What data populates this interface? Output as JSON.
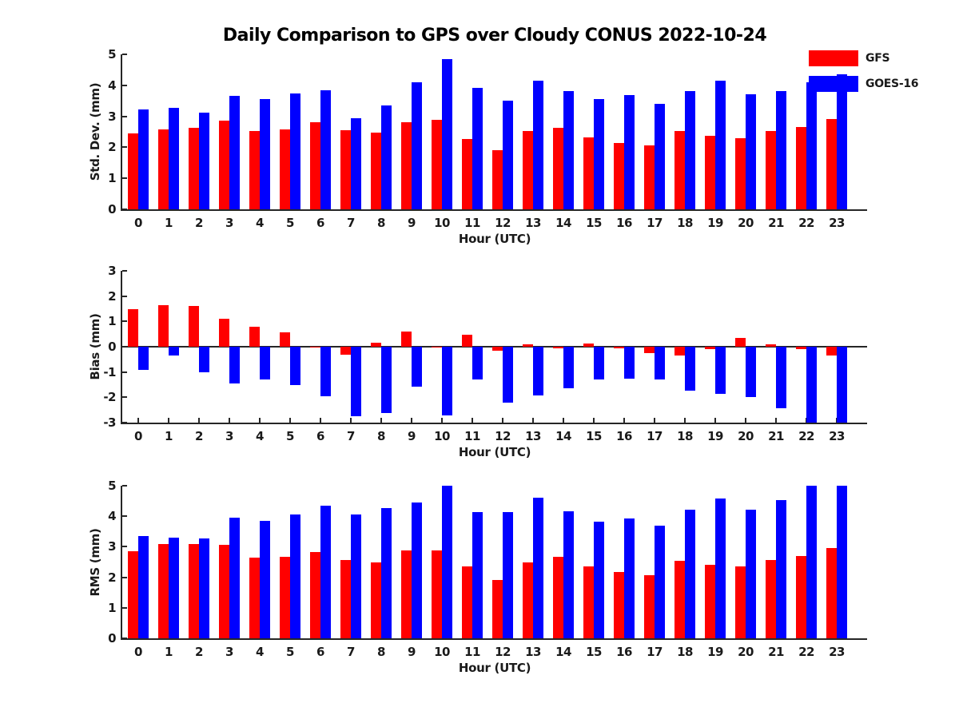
{
  "title": "Daily Comparison to GPS over Cloudy CONUS 2022-10-24",
  "legend": [
    {
      "label": "GFS",
      "color": "#ff0000"
    },
    {
      "label": "GOES-16",
      "color": "#0000ff"
    }
  ],
  "colors": {
    "gfs": "#ff0000",
    "goes16": "#0000ff",
    "axis": "#262626"
  },
  "chart_data": [
    {
      "type": "bar",
      "ylabel": "Std. Dev. (mm)",
      "xlabel": "Hour (UTC)",
      "categories": [
        "0",
        "1",
        "2",
        "3",
        "4",
        "5",
        "6",
        "7",
        "8",
        "9",
        "10",
        "11",
        "12",
        "13",
        "14",
        "15",
        "16",
        "17",
        "18",
        "19",
        "20",
        "21",
        "22",
        "23"
      ],
      "ylim": [
        0,
        5
      ],
      "yticks": [
        0,
        1,
        2,
        3,
        4,
        5
      ],
      "grid": false,
      "legend_position": "top-right-outside",
      "series": [
        {
          "name": "GFS",
          "color": "#ff0000",
          "values": [
            2.45,
            2.57,
            2.62,
            2.85,
            2.52,
            2.58,
            2.82,
            2.55,
            2.47,
            2.82,
            2.88,
            2.28,
            1.9,
            2.52,
            2.64,
            2.32,
            2.15,
            2.05,
            2.52,
            2.36,
            2.3,
            2.53,
            2.65,
            2.9
          ]
        },
        {
          "name": "GOES-16",
          "color": "#0000ff",
          "values": [
            3.22,
            3.28,
            3.13,
            3.66,
            3.56,
            3.73,
            3.84,
            2.93,
            3.36,
            4.1,
            4.85,
            3.92,
            3.5,
            4.16,
            3.81,
            3.55,
            3.68,
            3.41,
            3.81,
            4.16,
            3.72,
            3.81,
            4.1,
            4.35
          ]
        }
      ]
    },
    {
      "type": "bar",
      "ylabel": "Bias (mm)",
      "xlabel": "Hour (UTC)",
      "categories": [
        "0",
        "1",
        "2",
        "3",
        "4",
        "5",
        "6",
        "7",
        "8",
        "9",
        "10",
        "11",
        "12",
        "13",
        "14",
        "15",
        "16",
        "17",
        "18",
        "19",
        "20",
        "21",
        "22",
        "23"
      ],
      "ylim": [
        -3,
        3
      ],
      "yticks": [
        -3,
        -2,
        -1,
        0,
        1,
        2,
        3
      ],
      "grid": false,
      "series": [
        {
          "name": "GFS",
          "color": "#ff0000",
          "values": [
            1.47,
            1.65,
            1.6,
            1.1,
            0.8,
            0.57,
            -0.03,
            -0.3,
            0.15,
            0.6,
            -0.03,
            0.46,
            -0.15,
            0.08,
            -0.05,
            0.12,
            -0.05,
            -0.25,
            -0.35,
            -0.1,
            0.34,
            0.1,
            -0.08,
            -0.35
          ]
        },
        {
          "name": "GOES-16",
          "color": "#0000ff",
          "values": [
            -0.93,
            -0.35,
            -1.0,
            -1.45,
            -1.3,
            -1.5,
            -1.95,
            -2.75,
            -2.62,
            -1.57,
            -2.7,
            -1.3,
            -2.2,
            -1.92,
            -1.63,
            -1.31,
            -1.27,
            -1.3,
            -1.74,
            -1.85,
            -2.0,
            -2.43,
            -3.0,
            -3.0
          ]
        }
      ]
    },
    {
      "type": "bar",
      "ylabel": "RMS (mm)",
      "xlabel": "Hour (UTC)",
      "categories": [
        "0",
        "1",
        "2",
        "3",
        "4",
        "5",
        "6",
        "7",
        "8",
        "9",
        "10",
        "11",
        "12",
        "13",
        "14",
        "15",
        "16",
        "17",
        "18",
        "19",
        "20",
        "21",
        "22",
        "23"
      ],
      "ylim": [
        0,
        5
      ],
      "yticks": [
        0,
        1,
        2,
        3,
        4,
        5
      ],
      "grid": false,
      "series": [
        {
          "name": "GFS",
          "color": "#ff0000",
          "values": [
            2.85,
            3.08,
            3.1,
            3.06,
            2.65,
            2.67,
            2.83,
            2.57,
            2.5,
            2.87,
            2.88,
            2.35,
            1.92,
            2.5,
            2.67,
            2.35,
            2.17,
            2.07,
            2.55,
            2.4,
            2.35,
            2.56,
            2.7,
            2.96
          ]
        },
        {
          "name": "GOES-16",
          "color": "#0000ff",
          "values": [
            3.36,
            3.31,
            3.28,
            3.95,
            3.84,
            4.07,
            4.34,
            4.05,
            4.27,
            4.45,
            5.0,
            4.14,
            4.13,
            4.62,
            4.16,
            3.82,
            3.93,
            3.68,
            4.21,
            4.58,
            4.22,
            4.52,
            5.0,
            5.0
          ]
        }
      ]
    }
  ]
}
